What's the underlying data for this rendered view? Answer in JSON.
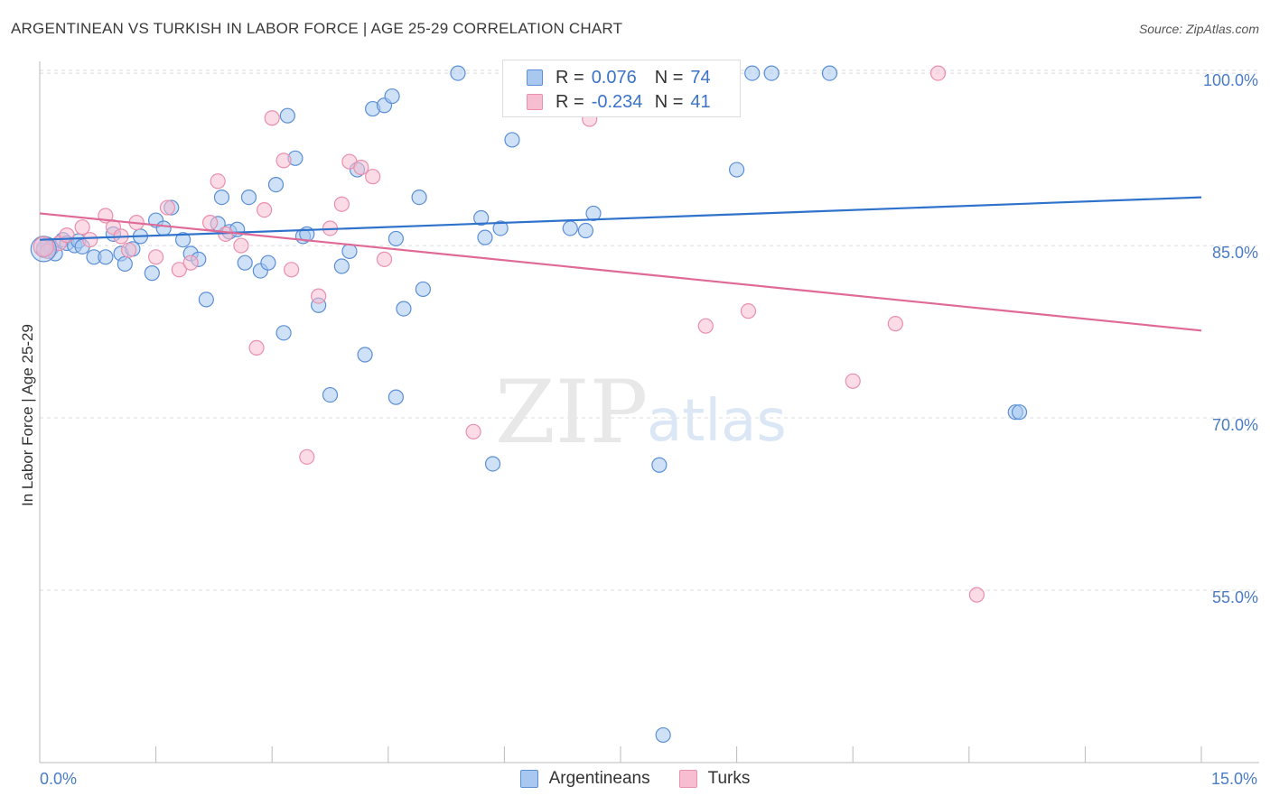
{
  "title": "ARGENTINEAN VS TURKISH IN LABOR FORCE | AGE 25-29 CORRELATION CHART",
  "source": "Source: ZipAtlas.com",
  "watermark": {
    "zip": "ZIP",
    "atlas": "atlas"
  },
  "legend": {
    "rows": [
      {
        "r_label": "R =",
        "r_value": "0.076",
        "n_label": "N =",
        "n_value": "74"
      },
      {
        "r_label": "R =",
        "r_value": "-0.234",
        "n_label": "N =",
        "n_value": "41"
      }
    ]
  },
  "bottom_legend": [
    "Argentineans",
    "Turks"
  ],
  "colors": {
    "blue_fill": "#a8c8f0",
    "blue_stroke": "#5b8fd6",
    "blue_line": "#2f72cc",
    "pink_fill": "#f7bdd0",
    "pink_stroke": "#ea8fae",
    "pink_line": "#e06a96",
    "grid": "#dcdcdc",
    "tick_text": "#4a7cc4"
  },
  "chart_data": {
    "type": "scatter",
    "title": "ARGENTINEAN VS TURKISH IN LABOR FORCE | AGE 25-29 CORRELATION CHART",
    "xlabel": "",
    "ylabel": "In Labor Force | Age 25-29",
    "xlim": [
      0,
      15
    ],
    "ylim": [
      40,
      101.5
    ],
    "x_tick_labels": [
      "0.0%",
      "15.0%"
    ],
    "y_ticks": [
      55,
      70,
      85,
      100
    ],
    "y_tick_labels": [
      "55.0%",
      "70.0%",
      "85.0%",
      "100.0%"
    ],
    "grid": true,
    "legend_position": "top-center",
    "series": [
      {
        "name": "Argentineans",
        "color": "#5b8fd6",
        "trend": {
          "x": [
            0,
            15
          ],
          "y": [
            85.5,
            89.2
          ]
        },
        "points": [
          [
            0.05,
            84.6
          ],
          [
            0.1,
            85.1
          ],
          [
            0.15,
            84.8
          ],
          [
            0.2,
            84.3
          ],
          [
            0.3,
            85.5
          ],
          [
            0.35,
            85.2
          ],
          [
            0.45,
            85.0
          ],
          [
            0.5,
            85.4
          ],
          [
            0.55,
            84.9
          ],
          [
            0.7,
            84.0
          ],
          [
            0.85,
            84.0
          ],
          [
            0.95,
            86.0
          ],
          [
            1.05,
            84.3
          ],
          [
            1.1,
            83.4
          ],
          [
            1.2,
            84.7
          ],
          [
            1.3,
            85.8
          ],
          [
            1.45,
            82.6
          ],
          [
            1.5,
            87.2
          ],
          [
            1.6,
            86.5
          ],
          [
            1.7,
            88.3
          ],
          [
            1.85,
            85.5
          ],
          [
            1.95,
            84.3
          ],
          [
            2.05,
            83.8
          ],
          [
            2.15,
            80.3
          ],
          [
            2.3,
            86.9
          ],
          [
            2.35,
            89.2
          ],
          [
            2.45,
            86.2
          ],
          [
            2.55,
            86.4
          ],
          [
            2.65,
            83.5
          ],
          [
            2.7,
            89.2
          ],
          [
            2.85,
            82.8
          ],
          [
            2.95,
            83.5
          ],
          [
            3.05,
            90.3
          ],
          [
            3.15,
            77.4
          ],
          [
            3.2,
            96.3
          ],
          [
            3.3,
            92.6
          ],
          [
            3.4,
            85.8
          ],
          [
            3.45,
            86.0
          ],
          [
            3.6,
            79.8
          ],
          [
            3.75,
            72.0
          ],
          [
            3.9,
            83.2
          ],
          [
            4.0,
            84.5
          ],
          [
            4.1,
            91.6
          ],
          [
            4.2,
            75.5
          ],
          [
            4.3,
            96.9
          ],
          [
            4.45,
            97.2
          ],
          [
            4.55,
            98.0
          ],
          [
            4.6,
            85.6
          ],
          [
            4.7,
            79.5
          ],
          [
            4.6,
            71.8
          ],
          [
            4.9,
            89.2
          ],
          [
            4.95,
            81.2
          ],
          [
            5.4,
            100.0
          ],
          [
            5.7,
            87.4
          ],
          [
            5.75,
            85.7
          ],
          [
            5.85,
            66.0
          ],
          [
            5.95,
            86.5
          ],
          [
            6.1,
            94.2
          ],
          [
            6.55,
            100.0
          ],
          [
            6.85,
            86.5
          ],
          [
            7.05,
            86.3
          ],
          [
            7.15,
            87.8
          ],
          [
            7.4,
            100.0
          ],
          [
            7.5,
            100.0
          ],
          [
            8.0,
            65.9
          ],
          [
            8.05,
            42.4
          ],
          [
            8.1,
            100.0
          ],
          [
            8.95,
            100.0
          ],
          [
            9.0,
            91.6
          ],
          [
            9.2,
            100.0
          ],
          [
            9.45,
            100.0
          ],
          [
            10.2,
            100.0
          ],
          [
            12.6,
            70.5
          ],
          [
            12.65,
            70.5
          ]
        ]
      },
      {
        "name": "Turks",
        "color": "#ea8fae",
        "trend": {
          "x": [
            0,
            15
          ],
          "y": [
            87.8,
            77.6
          ]
        },
        "points": [
          [
            0.05,
            84.8
          ],
          [
            0.1,
            84.5
          ],
          [
            0.25,
            85.2
          ],
          [
            0.35,
            85.9
          ],
          [
            0.55,
            86.6
          ],
          [
            0.65,
            85.5
          ],
          [
            0.85,
            87.6
          ],
          [
            0.95,
            86.6
          ],
          [
            1.05,
            85.8
          ],
          [
            1.15,
            84.6
          ],
          [
            1.25,
            87.0
          ],
          [
            1.5,
            84.0
          ],
          [
            1.65,
            88.3
          ],
          [
            1.8,
            82.9
          ],
          [
            1.95,
            83.5
          ],
          [
            2.2,
            87.0
          ],
          [
            2.3,
            90.6
          ],
          [
            2.4,
            86.0
          ],
          [
            2.6,
            85.0
          ],
          [
            2.8,
            76.1
          ],
          [
            2.9,
            88.1
          ],
          [
            3.0,
            96.1
          ],
          [
            3.15,
            92.4
          ],
          [
            3.25,
            82.9
          ],
          [
            3.45,
            66.6
          ],
          [
            3.6,
            80.6
          ],
          [
            3.75,
            86.5
          ],
          [
            3.9,
            88.6
          ],
          [
            4.0,
            92.3
          ],
          [
            4.15,
            91.8
          ],
          [
            4.3,
            91.0
          ],
          [
            4.45,
            83.8
          ],
          [
            5.6,
            68.8
          ],
          [
            6.4,
            100.0
          ],
          [
            7.1,
            96.0
          ],
          [
            8.6,
            78.0
          ],
          [
            9.15,
            79.3
          ],
          [
            10.5,
            73.2
          ],
          [
            11.05,
            78.2
          ],
          [
            11.6,
            100.0
          ],
          [
            12.1,
            54.6
          ]
        ]
      }
    ]
  }
}
